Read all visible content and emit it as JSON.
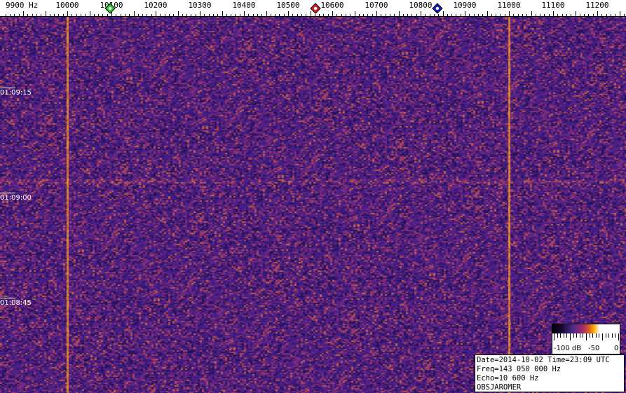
{
  "chart_data": {
    "type": "heatmap",
    "x_unit": "Hz",
    "x_range": [
      9860,
      11270
    ],
    "x_tick_labels": [
      "9900 Hz",
      "10000",
      "10100",
      "10200",
      "10300",
      "10400",
      "10500",
      "10600",
      "10700",
      "10800",
      "10900",
      "11000",
      "11100",
      "11200"
    ],
    "x_ticks": [
      9900,
      10000,
      10100,
      10200,
      10300,
      10400,
      10500,
      10600,
      10700,
      10800,
      10900,
      11000,
      11100,
      11200
    ],
    "y_tick_labels": [
      "01:09:15",
      "01:09:00",
      "01:08:45"
    ],
    "markers": [
      {
        "freq": 10097,
        "color": "#22cc22"
      },
      {
        "freq": 10562,
        "color": "#cc2222"
      },
      {
        "freq": 10838,
        "color": "#1122cc"
      }
    ],
    "carrier_lines_hz": [
      10000,
      11000
    ],
    "colorscale": {
      "labels": [
        "-100 dB",
        "-50",
        "0"
      ],
      "range_db": [
        -100,
        0
      ]
    }
  },
  "info": {
    "line1": "Date=2014-10-02 Time=23:09 UTC",
    "line2": "Freq=143 050 000 Hz",
    "line3": "Echo=10 600 Hz",
    "line4": "OBSJAROMER"
  }
}
